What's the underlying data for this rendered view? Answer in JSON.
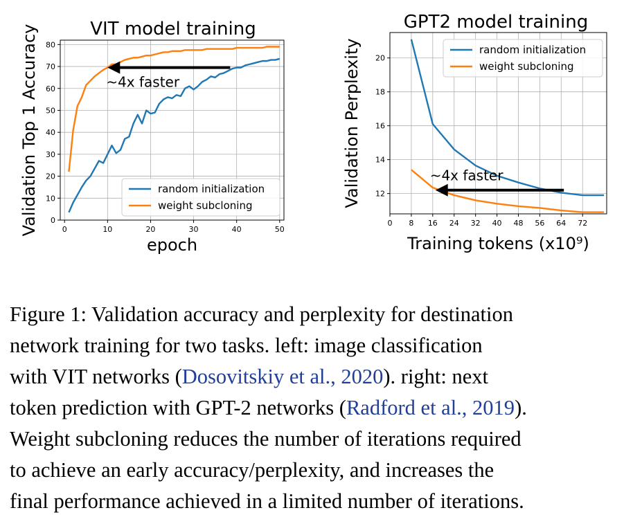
{
  "chart_data": [
    {
      "type": "line",
      "title": "VIT model training",
      "xlabel": "epoch",
      "ylabel": "Validation Top 1 Accuracy",
      "xlim": [
        -1,
        51
      ],
      "ylim": [
        0,
        82
      ],
      "xticks": [
        0,
        10,
        20,
        30,
        40,
        50
      ],
      "yticks": [
        0,
        10,
        20,
        30,
        40,
        50,
        60,
        70,
        80
      ],
      "grid": true,
      "legend": "lower-right",
      "annotation": {
        "text": "~4x faster",
        "arrow_from": [
          38.5,
          69.5
        ],
        "arrow_to": [
          10,
          69.5
        ]
      },
      "series": [
        {
          "name": "random initialization",
          "color": "#1f77b4",
          "x": [
            1,
            2,
            3,
            4,
            5,
            6,
            7,
            8,
            9,
            10,
            11,
            12,
            13,
            14,
            15,
            16,
            17,
            18,
            19,
            20,
            21,
            22,
            23,
            24,
            25,
            26,
            27,
            28,
            29,
            30,
            31,
            32,
            33,
            34,
            35,
            36,
            37,
            38,
            39,
            40,
            41,
            42,
            43,
            44,
            45,
            46,
            47,
            48,
            49,
            50
          ],
          "values": [
            3.5,
            8,
            11.5,
            15,
            18,
            20,
            23.5,
            27,
            26,
            30,
            34,
            30.5,
            32,
            37,
            38,
            44,
            48,
            44,
            50,
            48.5,
            49,
            53,
            55,
            56,
            55.5,
            57,
            56.5,
            60,
            61,
            59.5,
            61,
            63,
            64,
            65.5,
            65,
            66.5,
            67,
            68,
            69,
            69.5,
            69.5,
            70.5,
            71,
            71.5,
            72,
            72.5,
            72.5,
            73,
            73,
            73.5
          ]
        },
        {
          "name": "weight subcloning",
          "color": "#ff7f0e",
          "x": [
            1,
            2,
            3,
            4,
            5,
            6,
            7,
            8,
            9,
            10,
            11,
            12,
            13,
            14,
            15,
            16,
            17,
            18,
            19,
            20,
            21,
            22,
            23,
            24,
            25,
            26,
            27,
            28,
            29,
            30,
            31,
            32,
            33,
            34,
            35,
            36,
            37,
            38,
            39,
            40,
            41,
            42,
            43,
            44,
            45,
            46,
            47,
            48,
            49,
            50
          ],
          "values": [
            22,
            41,
            52,
            56,
            61.5,
            63.5,
            65.5,
            67,
            68.5,
            69.5,
            71,
            71,
            72,
            73,
            73.5,
            74,
            74,
            74.5,
            75,
            75,
            75.5,
            76,
            76.5,
            76.5,
            77,
            77,
            77,
            77.5,
            77.5,
            77.5,
            77.5,
            77.5,
            78,
            78,
            78,
            78,
            78,
            78,
            78,
            78.5,
            78.5,
            78.5,
            78.5,
            78.5,
            78.5,
            78.5,
            79,
            79,
            79,
            79
          ]
        }
      ]
    },
    {
      "type": "line",
      "title": "GPT2 model training",
      "xlabel": "Training tokens (x10⁹)",
      "ylabel": "Validation Perplexity",
      "xlim": [
        0,
        81
      ],
      "ylim": [
        10.8,
        21.5
      ],
      "xticks": [
        0,
        8,
        16,
        24,
        32,
        40,
        48,
        56,
        64,
        72
      ],
      "yticks": [
        12,
        14,
        16,
        18,
        20
      ],
      "grid": true,
      "legend": "upper-right",
      "annotation": {
        "text": "~4x faster",
        "arrow_from": [
          65,
          12.2
        ],
        "arrow_to": [
          17,
          12.2
        ]
      },
      "series": [
        {
          "name": "random initialization",
          "color": "#1f77b4",
          "x": [
            8,
            16,
            24,
            32,
            40,
            48,
            56,
            64,
            72,
            80
          ],
          "values": [
            21.1,
            16.1,
            14.6,
            13.65,
            13.05,
            12.65,
            12.3,
            12.05,
            11.9,
            11.9
          ]
        },
        {
          "name": "weight subcloning",
          "color": "#ff7f0e",
          "x": [
            8,
            16,
            24,
            32,
            40,
            48,
            56,
            64,
            72,
            80
          ],
          "values": [
            13.4,
            12.35,
            11.9,
            11.6,
            11.4,
            11.25,
            11.15,
            11.0,
            10.9,
            10.9
          ]
        }
      ]
    }
  ],
  "caption": {
    "lines": [
      [
        "Figure 1: Validation accuracy and perplexity for destination"
      ],
      [
        "network training for two tasks.  left: image classification"
      ],
      [
        "with VIT networks (",
        {
          "cite": "Dosovitskiy et al., 2020"
        },
        ").  right: next"
      ],
      [
        "token prediction with GPT-2 networks (",
        {
          "cite": "Radford et al., 2019"
        },
        ")."
      ],
      [
        "Weight subcloning reduces the number of iterations required"
      ],
      [
        "to achieve an early accuracy/perplexity, and increases the"
      ],
      [
        "final performance achieved in a limited number of iterations."
      ]
    ]
  }
}
